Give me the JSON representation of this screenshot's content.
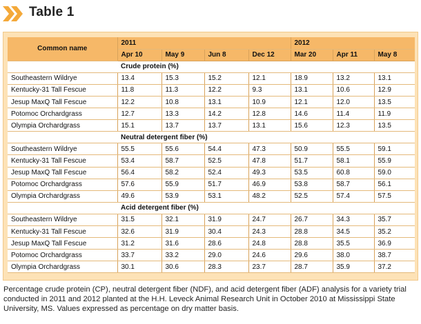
{
  "title": "Table 1",
  "colors": {
    "accent": "#f6b868",
    "frame": "#fde2b6",
    "chevron": "#f4a93a"
  },
  "header": {
    "common_name": "Common name",
    "year1": "2011",
    "year2": "2012",
    "dates": [
      "Apr 10",
      "May 9",
      "Jun 8",
      "Dec 12",
      "Mar 20",
      "Apr 11",
      "May 8"
    ]
  },
  "sections": [
    {
      "label": "Crude protein (%)",
      "rows": [
        {
          "name": "Southeastern Wildrye",
          "values": [
            "13.4",
            "15.3",
            "15.2",
            "12.1",
            "18.9",
            "13.2",
            "13.1"
          ]
        },
        {
          "name": "Kentucky-31 Tall Fescue",
          "values": [
            "11.8",
            "11.3",
            "12.2",
            "9.3",
            "13.1",
            "10.6",
            "12.9"
          ]
        },
        {
          "name": "Jesup MaxQ Tall Fescue",
          "values": [
            "12.2",
            "10.8",
            "13.1",
            "10.9",
            "12.1",
            "12.0",
            "13.5"
          ]
        },
        {
          "name": "Potomoc Orchardgrass",
          "values": [
            "12.7",
            "13.3",
            "14.2",
            "12.8",
            "14.6",
            "11.4",
            "11.9"
          ]
        },
        {
          "name": "Olympia Orchardgrass",
          "values": [
            "15.1",
            "13.7",
            "13.7",
            "13.1",
            "15.6",
            "12.3",
            "13.5"
          ]
        }
      ]
    },
    {
      "label": "Neutral detergent fiber (%)",
      "rows": [
        {
          "name": "Southeastern Wildrye",
          "values": [
            "55.5",
            "55.6",
            "54.4",
            "47.3",
            "50.9",
            "55.5",
            "59.1"
          ]
        },
        {
          "name": "Kentucky-31 Tall Fescue",
          "values": [
            "53.4",
            "58.7",
            "52.5",
            "47.8",
            "51.7",
            "58.1",
            "55.9"
          ]
        },
        {
          "name": "Jesup MaxQ Tall Fescue",
          "values": [
            "56.4",
            "58.2",
            "52.4",
            "49.3",
            "53.5",
            "60.8",
            "59.0"
          ]
        },
        {
          "name": "Potomoc Orchardgrass",
          "values": [
            "57.6",
            "55.9",
            "51.7",
            "46.9",
            "53.8",
            "58.7",
            "56.1"
          ]
        },
        {
          "name": "Olympia Orchardgrass",
          "values": [
            "49.6",
            "53.9",
            "53.1",
            "48.2",
            "52.5",
            "57.4",
            "57.5"
          ]
        }
      ]
    },
    {
      "label": "Acid detergent fiber (%)",
      "rows": [
        {
          "name": "Southeastern Wildrye",
          "values": [
            "31.5",
            "32.1",
            "31.9",
            "24.7",
            "26.7",
            "34.3",
            "35.7"
          ]
        },
        {
          "name": "Kentucky-31 Tall Fescue",
          "values": [
            "32.6",
            "31.9",
            "30.4",
            "24.3",
            "28.8",
            "34.5",
            "35.2"
          ]
        },
        {
          "name": "Jesup MaxQ Tall Fescue",
          "values": [
            "31.2",
            "31.6",
            "28.6",
            "24.8",
            "28.8",
            "35.5",
            "36.9"
          ]
        },
        {
          "name": "Potomoc Orchardgrass",
          "values": [
            "33.7",
            "33.2",
            "29.0",
            "24.6",
            "29.6",
            "38.0",
            "38.7"
          ]
        },
        {
          "name": "Olympia Orchardgrass",
          "values": [
            "30.1",
            "30.6",
            "28.3",
            "23.7",
            "28.7",
            "35.9",
            "37.2"
          ]
        }
      ]
    }
  ],
  "caption": "Percentage crude protein (CP), neutral detergent fiber (NDF), and acid detergent fiber (ADF) analysis for a variety trial conducted in 2011 and 2012 planted at the H.H. Leveck Animal Research Unit in October 2010 at Mississippi State University, MS. Values expressed as percentage on dry matter basis."
}
